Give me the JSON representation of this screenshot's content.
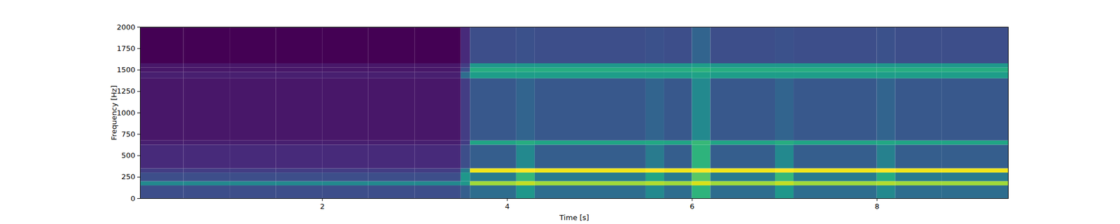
{
  "chart_data": {
    "type": "heatmap",
    "x_label": "Time [s]",
    "y_label": "Frequency [Hz]",
    "xlim": [
      0.03,
      9.42
    ],
    "ylim": [
      0,
      2000
    ],
    "xticks": [
      2,
      4,
      6,
      8
    ],
    "yticks": [
      0,
      250,
      500,
      750,
      1000,
      1250,
      1500,
      1750,
      2000
    ],
    "color": "viridis",
    "cells": {
      "time_edges": [
        0.03,
        0.5,
        1,
        1.5,
        2,
        2.5,
        3,
        3.5,
        3.6,
        4.1,
        4.3,
        5.5,
        5.7,
        6.0,
        6.2,
        6.9,
        7.1,
        8.0,
        8.2,
        8.7,
        9.42
      ],
      "freq_edges": [
        0,
        150,
        200,
        300,
        350,
        625,
        675,
        1400,
        1475,
        1525,
        1575,
        2000
      ],
      "values": [
        [
          0.35,
          0.35,
          0.35,
          0.35,
          0.35,
          0.35,
          0.35,
          0.4,
          0.45,
          0.6,
          0.45,
          0.55,
          0.45,
          0.7,
          0.45,
          0.6,
          0.45,
          0.55,
          0.45,
          0.45
        ],
        [
          0.55,
          0.55,
          0.55,
          0.55,
          0.55,
          0.55,
          0.55,
          0.6,
          0.88,
          0.92,
          0.88,
          0.9,
          0.88,
          0.95,
          0.88,
          0.92,
          0.88,
          0.9,
          0.88,
          0.88
        ],
        [
          0.35,
          0.35,
          0.35,
          0.35,
          0.35,
          0.35,
          0.35,
          0.6,
          0.5,
          0.72,
          0.5,
          0.65,
          0.5,
          0.78,
          0.5,
          0.72,
          0.5,
          0.68,
          0.5,
          0.5
        ],
        [
          0.3,
          0.3,
          0.3,
          0.3,
          0.3,
          0.3,
          0.3,
          0.5,
          0.98,
          1,
          0.98,
          1,
          0.98,
          1,
          0.98,
          1,
          0.98,
          1,
          0.98,
          0.98
        ],
        [
          0.25,
          0.25,
          0.25,
          0.25,
          0.25,
          0.25,
          0.25,
          0.35,
          0.4,
          0.55,
          0.4,
          0.5,
          0.4,
          0.7,
          0.4,
          0.55,
          0.4,
          0.52,
          0.4,
          0.4
        ],
        [
          0.22,
          0.22,
          0.22,
          0.22,
          0.22,
          0.22,
          0.22,
          0.3,
          0.65,
          0.68,
          0.65,
          0.66,
          0.65,
          0.72,
          0.65,
          0.68,
          0.65,
          0.66,
          0.65,
          0.65
        ],
        [
          0.2,
          0.2,
          0.2,
          0.2,
          0.2,
          0.2,
          0.2,
          0.3,
          0.38,
          0.42,
          0.38,
          0.42,
          0.38,
          0.55,
          0.38,
          0.42,
          0.38,
          0.42,
          0.38,
          0.38
        ],
        [
          0.22,
          0.22,
          0.22,
          0.22,
          0.22,
          0.22,
          0.22,
          0.45,
          0.62,
          0.62,
          0.62,
          0.62,
          0.62,
          0.64,
          0.62,
          0.62,
          0.62,
          0.62,
          0.62,
          0.62
        ],
        [
          0.2,
          0.2,
          0.2,
          0.2,
          0.2,
          0.2,
          0.2,
          0.35,
          0.68,
          0.68,
          0.68,
          0.68,
          0.68,
          0.7,
          0.68,
          0.68,
          0.68,
          0.68,
          0.68,
          0.68
        ],
        [
          0.2,
          0.2,
          0.2,
          0.2,
          0.2,
          0.2,
          0.2,
          0.3,
          0.6,
          0.6,
          0.6,
          0.6,
          0.6,
          0.62,
          0.6,
          0.6,
          0.6,
          0.6,
          0.6,
          0.6
        ],
        [
          0.15,
          0.15,
          0.15,
          0.15,
          0.15,
          0.15,
          0.15,
          0.25,
          0.35,
          0.36,
          0.35,
          0.36,
          0.35,
          0.42,
          0.35,
          0.36,
          0.35,
          0.36,
          0.35,
          0.35
        ]
      ]
    }
  }
}
